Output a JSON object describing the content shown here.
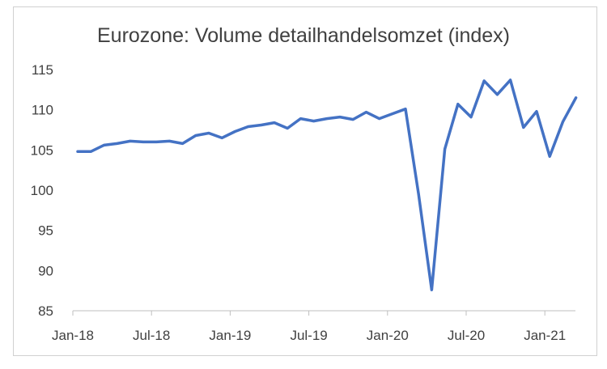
{
  "chart_data": {
    "type": "line",
    "title": "Eurozone: Volume detailhandelsomzet (index)",
    "xlabel": "",
    "ylabel": "",
    "ylim": [
      85,
      115
    ],
    "y_ticks": [
      "85",
      "90",
      "95",
      "100",
      "105",
      "110",
      "115"
    ],
    "x_ticks": [
      "Jan-18",
      "Jul-18",
      "Jan-19",
      "Jul-19",
      "Jan-20",
      "Jul-20",
      "Jan-21"
    ],
    "grid": false,
    "legend": "none",
    "line_color": "#4472C4",
    "series": [
      {
        "x": [
          "Jan-18",
          "Feb-18",
          "Mar-18",
          "Apr-18",
          "May-18",
          "Jun-18",
          "Jul-18",
          "Aug-18",
          "Sep-18",
          "Oct-18",
          "Nov-18",
          "Dec-18",
          "Jan-19",
          "Feb-19",
          "Mar-19",
          "Apr-19",
          "May-19",
          "Jun-19",
          "Jul-19",
          "Aug-19",
          "Sep-19",
          "Oct-19",
          "Nov-19",
          "Dec-19",
          "Jan-20",
          "Feb-20",
          "Mar-20",
          "Apr-20",
          "May-20",
          "Jun-20",
          "Jul-20",
          "Aug-20",
          "Sep-20",
          "Oct-20",
          "Nov-20",
          "Dec-20",
          "Jan-21",
          "Feb-21",
          "Mar-21"
        ],
        "values": [
          104.8,
          104.8,
          105.6,
          105.8,
          106.1,
          106.0,
          106.0,
          106.1,
          105.8,
          106.8,
          107.1,
          106.5,
          107.3,
          107.9,
          108.1,
          108.4,
          107.7,
          108.9,
          108.6,
          108.9,
          109.1,
          108.8,
          109.7,
          108.9,
          109.5,
          110.1,
          99.5,
          87.6,
          105.1,
          110.7,
          109.1,
          113.6,
          111.9,
          113.7,
          107.8,
          109.8,
          104.2,
          108.5,
          111.5
        ]
      }
    ]
  }
}
